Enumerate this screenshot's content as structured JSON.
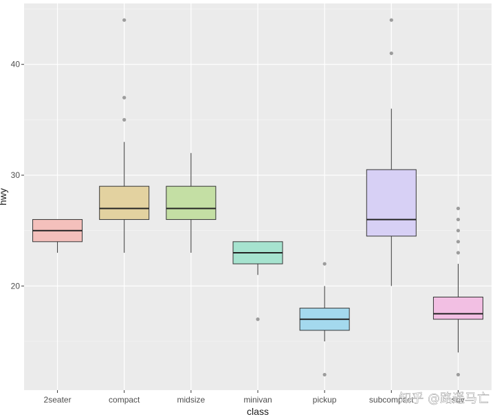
{
  "chart_data": {
    "type": "boxplot",
    "xlabel": "class",
    "ylabel": "hwy",
    "ylim": [
      10.6,
      45.5
    ],
    "yticks": [
      20,
      30,
      40
    ],
    "grid": true,
    "legend": "none",
    "categories": [
      "2seater",
      "compact",
      "midsize",
      "minivan",
      "pickup",
      "subcompact",
      "suv"
    ],
    "boxes": [
      {
        "category": "2seater",
        "fill": "#f4c0bc",
        "whisker_low": 23,
        "q1": 24,
        "median": 25,
        "q3": 26,
        "whisker_high": 26,
        "outliers": []
      },
      {
        "category": "compact",
        "fill": "#e3d2a0",
        "whisker_low": 23,
        "q1": 26,
        "median": 27,
        "q3": 29,
        "whisker_high": 33,
        "outliers": [
          35,
          37,
          44
        ]
      },
      {
        "category": "midsize",
        "fill": "#c4dfa4",
        "whisker_low": 23,
        "q1": 26,
        "median": 27,
        "q3": 29,
        "whisker_high": 32,
        "outliers": []
      },
      {
        "category": "minivan",
        "fill": "#a6e3cf",
        "whisker_low": 21,
        "q1": 22,
        "median": 23,
        "q3": 24,
        "whisker_high": 24,
        "outliers": [
          17
        ]
      },
      {
        "category": "pickup",
        "fill": "#a4d9ee",
        "whisker_low": 15,
        "q1": 16,
        "median": 17,
        "q3": 18,
        "whisker_high": 20,
        "outliers": [
          12,
          22
        ]
      },
      {
        "category": "subcompact",
        "fill": "#d7d0f5",
        "whisker_low": 20,
        "q1": 24.5,
        "median": 26,
        "q3": 30.5,
        "whisker_high": 36,
        "outliers": [
          41,
          44
        ]
      },
      {
        "category": "suv",
        "fill": "#f2bfe3",
        "whisker_low": 14,
        "q1": 17,
        "median": 17.5,
        "q3": 19,
        "whisker_high": 22,
        "outliers": [
          12,
          23,
          24,
          25,
          26,
          27
        ]
      }
    ]
  },
  "watermark": "知乎 @路遥马亡",
  "colors": {
    "panel": "#ebebeb",
    "grid_major": "#ffffff",
    "grid_minor": "#f5f5f5",
    "box_line": "#333333",
    "outlier": "#7f7f7f"
  }
}
